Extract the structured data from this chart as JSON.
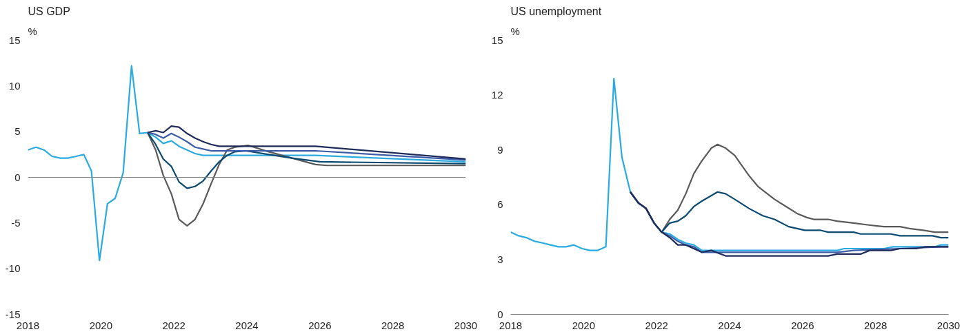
{
  "chart_data": [
    {
      "type": "line",
      "title": "US GDP",
      "ylabel": "%",
      "xlim": [
        2018,
        2030
      ],
      "xticks": [
        2018,
        2020,
        2022,
        2024,
        2026,
        2028,
        2030
      ],
      "ylim": [
        -15,
        15
      ],
      "yticks": [
        -15,
        -10,
        -5,
        0,
        5,
        10,
        15
      ],
      "grid": false,
      "line_style": "solid",
      "marker": "none",
      "ref_lines": [
        {
          "axis": "y",
          "value": 0,
          "color": "#808080"
        }
      ],
      "series": [
        {
          "color": "#29abe2",
          "x": [
            2018.0,
            2018.22,
            2018.44,
            2018.66,
            2018.89,
            2019.09,
            2019.32,
            2019.53,
            2019.74,
            2019.96,
            2020.18,
            2020.39,
            2020.61,
            2020.84,
            2021.06,
            2021.28,
            2021.5,
            2021.71,
            2021.93,
            2022.14,
            2022.36,
            2022.58,
            2022.8,
            2023.67,
            2025.88,
            2030.0
          ],
          "values": [
            3.0,
            3.3,
            3.0,
            2.3,
            2.1,
            2.1,
            2.3,
            2.5,
            0.7,
            -9.1,
            -2.9,
            -2.3,
            0.5,
            12.2,
            4.8,
            4.9,
            4.4,
            3.7,
            4.0,
            3.4,
            3.0,
            2.6,
            2.4,
            2.4,
            2.4,
            1.7
          ]
        },
        {
          "color": "#595959",
          "x": [
            2021.28,
            2021.5,
            2021.71,
            2021.93,
            2022.14,
            2022.36,
            2022.58,
            2022.8,
            2023.02,
            2023.24,
            2023.46,
            2023.67,
            2024.03,
            2024.6,
            2025.24,
            2025.88,
            2026.2,
            2030.0
          ],
          "values": [
            4.9,
            3.0,
            0.2,
            -1.8,
            -4.6,
            -5.3,
            -4.6,
            -2.9,
            -0.7,
            1.4,
            3.0,
            3.3,
            3.5,
            2.8,
            2.1,
            1.4,
            1.3,
            1.3
          ]
        },
        {
          "color": "#0b4a70",
          "x": [
            2021.28,
            2021.5,
            2021.71,
            2021.93,
            2022.14,
            2022.36,
            2022.58,
            2022.8,
            2023.02,
            2023.24,
            2023.46,
            2023.67,
            2023.97,
            2024.6,
            2025.24,
            2026.0,
            2030.0
          ],
          "values": [
            4.9,
            3.6,
            2.0,
            1.2,
            -0.5,
            -1.2,
            -1.0,
            -0.4,
            0.7,
            1.7,
            2.4,
            2.8,
            2.9,
            2.5,
            2.1,
            1.7,
            1.5
          ]
        },
        {
          "color": "#3d5ca8",
          "x": [
            2021.28,
            2021.5,
            2021.71,
            2021.93,
            2022.14,
            2022.36,
            2022.58,
            2022.8,
            2023.02,
            2023.67,
            2025.88,
            2030.0
          ],
          "values": [
            4.9,
            4.7,
            4.3,
            4.8,
            4.4,
            3.9,
            3.3,
            3.1,
            2.9,
            2.9,
            2.9,
            1.9
          ]
        },
        {
          "color": "#1e2a5a",
          "x": [
            2021.28,
            2021.5,
            2021.71,
            2021.93,
            2022.14,
            2022.36,
            2022.58,
            2022.8,
            2023.02,
            2023.24,
            2023.67,
            2025.88,
            2030.0
          ],
          "values": [
            4.9,
            5.1,
            4.9,
            5.6,
            5.5,
            4.8,
            4.3,
            3.9,
            3.6,
            3.4,
            3.4,
            3.4,
            2.0
          ]
        }
      ]
    },
    {
      "type": "line",
      "title": "US unemployment",
      "ylabel": "%",
      "xlim": [
        2018,
        2030
      ],
      "xticks": [
        2018,
        2020,
        2022,
        2024,
        2026,
        2028,
        2030
      ],
      "ylim": [
        0,
        15
      ],
      "yticks": [
        0,
        3,
        6,
        9,
        12,
        15
      ],
      "grid": false,
      "line_style": "solid",
      "marker": "none",
      "series": [
        {
          "color": "#29abe2",
          "x": [
            2018.0,
            2018.22,
            2018.43,
            2018.66,
            2018.89,
            2019.09,
            2019.31,
            2019.52,
            2019.73,
            2019.96,
            2020.17,
            2020.38,
            2020.61,
            2020.83,
            2021.05,
            2021.28,
            2021.5,
            2021.71,
            2021.93,
            2022.14,
            2022.36,
            2022.58,
            2022.8,
            2023.02,
            2023.24,
            2026.95,
            2027.14,
            2028.23,
            2028.49,
            2029.63,
            2029.79,
            2030.0
          ],
          "values": [
            4.5,
            4.3,
            4.2,
            4.0,
            3.9,
            3.8,
            3.7,
            3.7,
            3.8,
            3.6,
            3.5,
            3.5,
            3.7,
            12.9,
            8.6,
            6.7,
            6.1,
            5.8,
            5.0,
            4.5,
            4.4,
            4.1,
            3.9,
            3.8,
            3.5,
            3.5,
            3.6,
            3.6,
            3.7,
            3.7,
            3.8,
            3.8
          ]
        },
        {
          "color": "#595959",
          "x": [
            2021.28,
            2021.5,
            2021.71,
            2021.93,
            2022.14,
            2022.36,
            2022.58,
            2022.8,
            2023.02,
            2023.24,
            2023.5,
            2023.67,
            2023.89,
            2024.14,
            2024.53,
            2024.78,
            2025.23,
            2025.55,
            2025.87,
            2026.12,
            2026.31,
            2026.7,
            2026.95,
            2027.4,
            2027.78,
            2028.23,
            2028.67,
            2028.93,
            2029.31,
            2029.63,
            2030.0
          ],
          "values": [
            6.7,
            6.1,
            5.8,
            5.0,
            4.5,
            5.2,
            5.7,
            6.6,
            7.7,
            8.4,
            9.1,
            9.3,
            9.1,
            8.7,
            7.6,
            7.0,
            6.3,
            5.9,
            5.5,
            5.3,
            5.2,
            5.2,
            5.1,
            5.0,
            4.9,
            4.8,
            4.8,
            4.7,
            4.6,
            4.5,
            4.5
          ]
        },
        {
          "color": "#0b4a70",
          "x": [
            2021.28,
            2021.5,
            2021.71,
            2021.93,
            2022.14,
            2022.36,
            2022.58,
            2022.8,
            2023.02,
            2023.24,
            2023.5,
            2023.67,
            2023.89,
            2024.14,
            2024.53,
            2024.91,
            2025.23,
            2025.62,
            2026.06,
            2026.5,
            2026.7,
            2027.4,
            2027.59,
            2028.42,
            2028.67,
            2029.56,
            2029.79,
            2030.0
          ],
          "values": [
            6.7,
            6.1,
            5.8,
            5.0,
            4.5,
            5.0,
            5.1,
            5.4,
            5.9,
            6.2,
            6.5,
            6.7,
            6.6,
            6.3,
            5.8,
            5.4,
            5.2,
            4.8,
            4.6,
            4.6,
            4.5,
            4.5,
            4.4,
            4.4,
            4.3,
            4.3,
            4.2,
            4.2
          ]
        },
        {
          "color": "#3d5ca8",
          "x": [
            2021.28,
            2021.5,
            2021.71,
            2021.93,
            2022.14,
            2022.36,
            2022.58,
            2022.8,
            2023.02,
            2023.24,
            2026.95,
            2027.4,
            2028.67,
            2029.79,
            2030.0
          ],
          "values": [
            6.7,
            6.1,
            5.8,
            5.0,
            4.5,
            4.3,
            4.0,
            3.8,
            3.7,
            3.4,
            3.4,
            3.5,
            3.6,
            3.7,
            3.7
          ]
        },
        {
          "color": "#1e2a5a",
          "x": [
            2021.28,
            2021.5,
            2021.71,
            2021.93,
            2022.14,
            2022.36,
            2022.58,
            2022.8,
            2023.02,
            2023.24,
            2023.5,
            2023.89,
            2026.7,
            2026.95,
            2027.59,
            2027.84,
            2028.42,
            2028.67,
            2029.11,
            2029.37,
            2030.0
          ],
          "values": [
            6.7,
            6.1,
            5.8,
            5.0,
            4.5,
            4.2,
            3.8,
            3.8,
            3.6,
            3.4,
            3.5,
            3.2,
            3.2,
            3.3,
            3.3,
            3.5,
            3.5,
            3.6,
            3.6,
            3.7,
            3.7
          ]
        }
      ]
    }
  ]
}
